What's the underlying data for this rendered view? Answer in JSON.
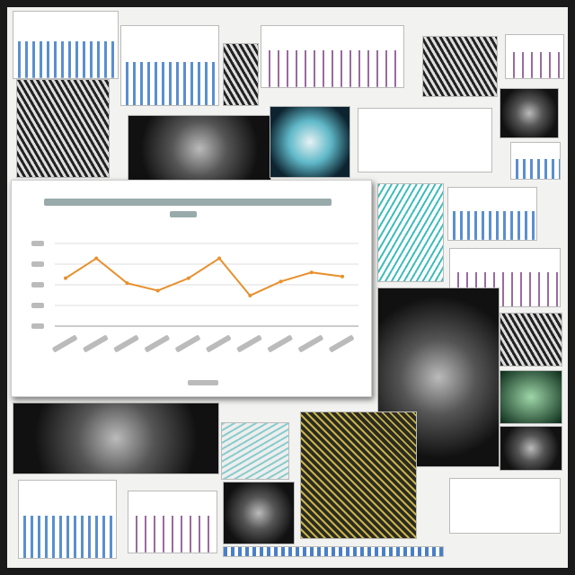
{
  "chart_data": {
    "type": "line",
    "categories": [
      null,
      null,
      null,
      null,
      null,
      null,
      null,
      null,
      null,
      null
    ],
    "values": [
      58,
      82,
      52,
      43,
      58,
      82,
      37,
      54,
      65,
      60
    ],
    "color": "#e8902e",
    "ylim": [
      0,
      100
    ]
  }
}
